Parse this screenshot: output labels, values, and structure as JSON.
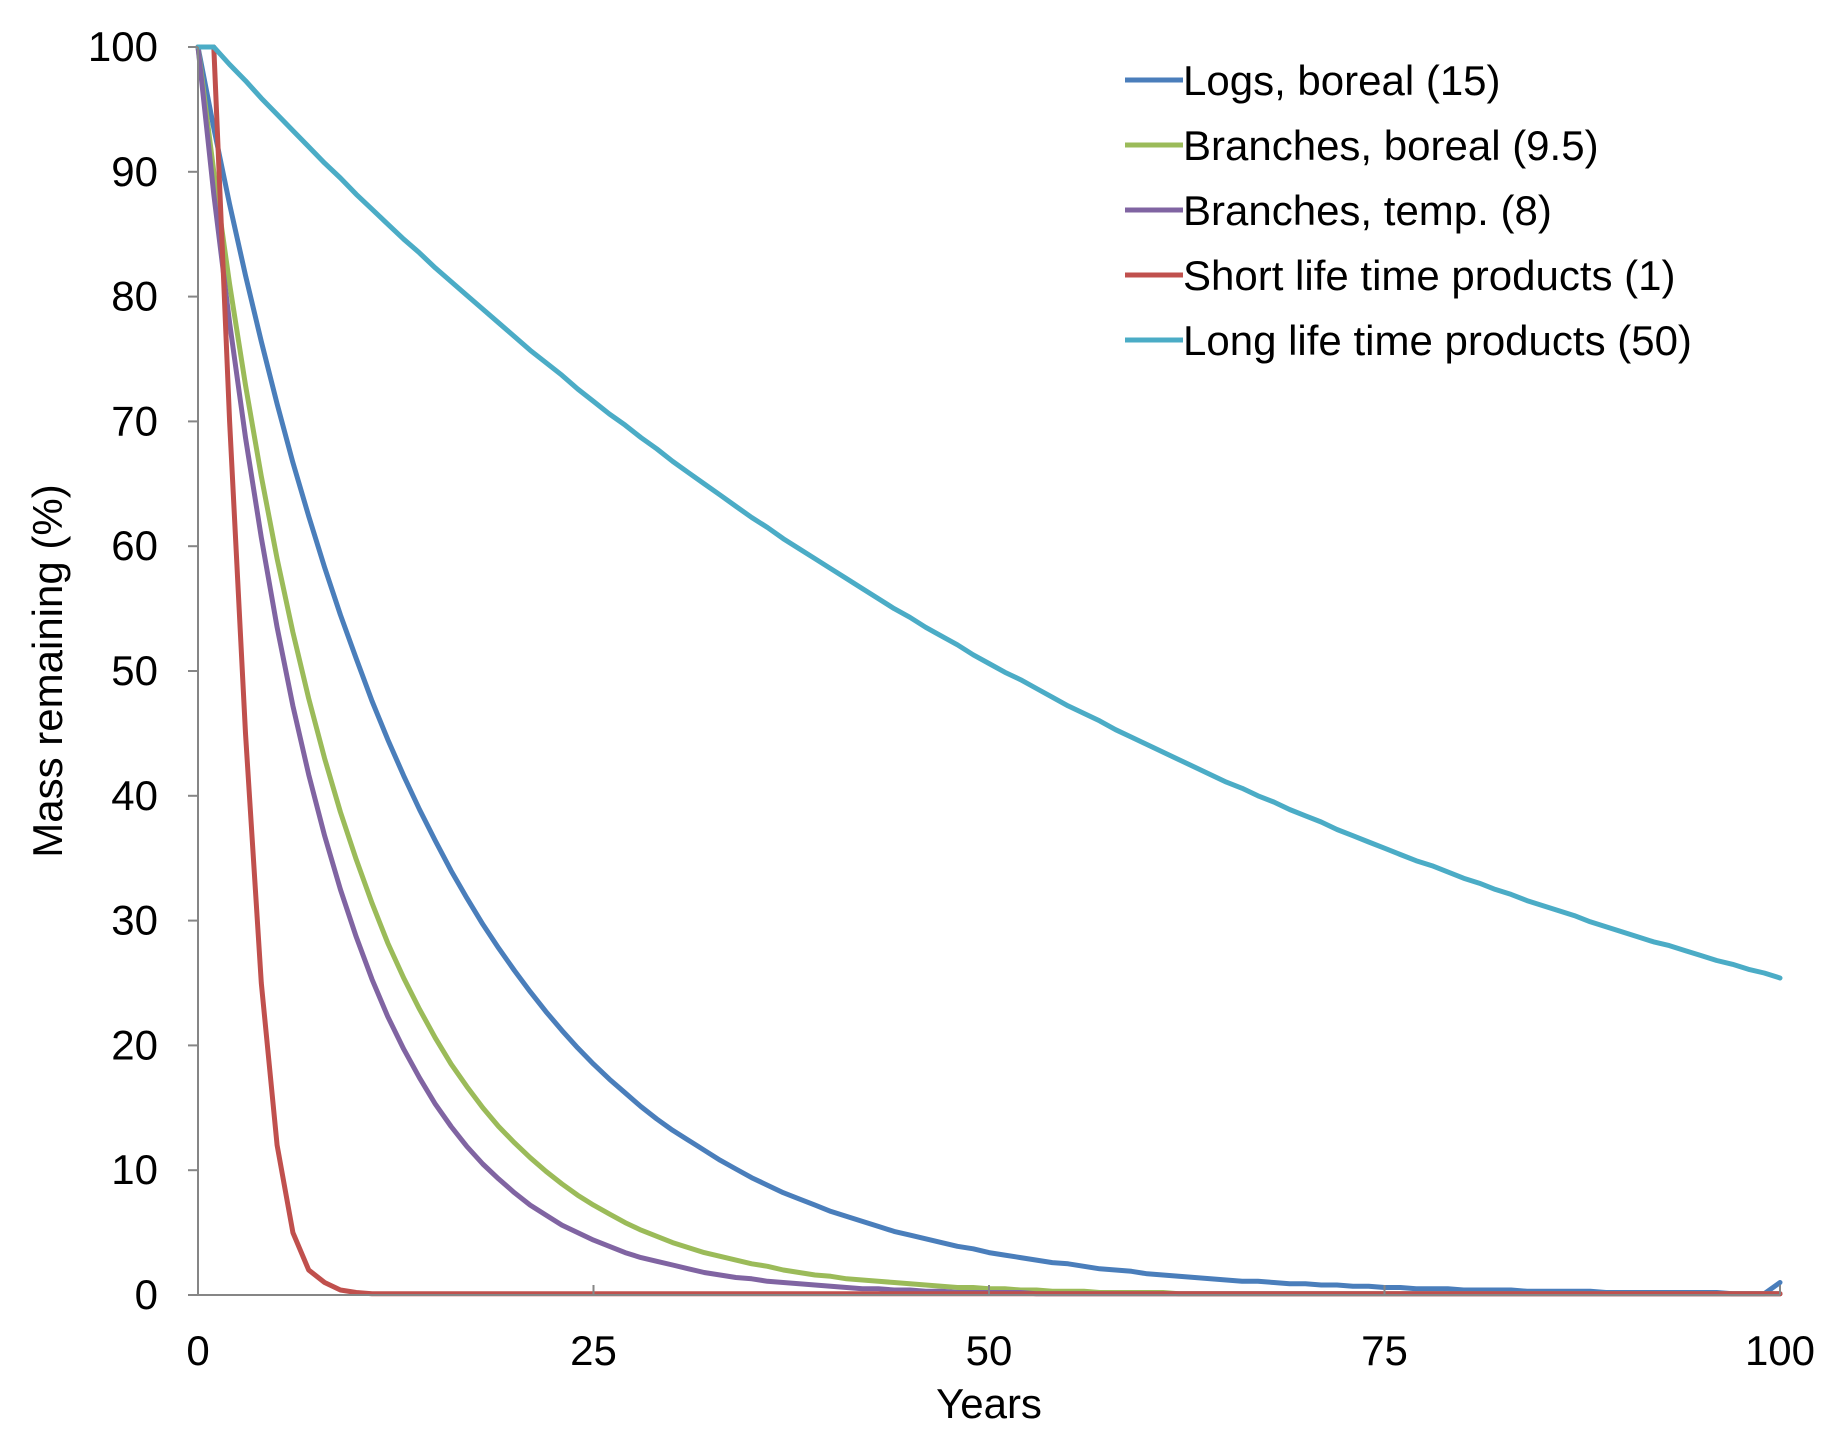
{
  "chart_data": {
    "type": "line",
    "title": "",
    "xlabel": "Years",
    "ylabel": "Mass remaining (%)",
    "xlim": [
      0,
      100
    ],
    "ylim": [
      0,
      100
    ],
    "xticks": [
      0,
      25,
      50,
      75,
      100
    ],
    "yticks": [
      0,
      10,
      20,
      30,
      40,
      50,
      60,
      70,
      80,
      90,
      100
    ],
    "xtick_labels": [
      "0",
      "25",
      "50",
      "75",
      "100"
    ],
    "ytick_labels": [
      "0",
      "10",
      "20",
      "30",
      "40",
      "50",
      "60",
      "70",
      "80",
      "90",
      "100"
    ],
    "grid": false,
    "legend_position": "top-right",
    "x": [
      0,
      1,
      2,
      3,
      4,
      5,
      6,
      7,
      8,
      9,
      10,
      11,
      12,
      13,
      14,
      15,
      16,
      17,
      18,
      19,
      20,
      21,
      22,
      23,
      24,
      25,
      26,
      27,
      28,
      29,
      30,
      31,
      32,
      33,
      34,
      35,
      36,
      37,
      38,
      39,
      40,
      41,
      42,
      43,
      44,
      45,
      46,
      47,
      48,
      49,
      50,
      51,
      52,
      53,
      54,
      55,
      56,
      57,
      58,
      59,
      60,
      61,
      62,
      63,
      64,
      65,
      66,
      67,
      68,
      69,
      70,
      71,
      72,
      73,
      74,
      75,
      76,
      77,
      78,
      79,
      80,
      81,
      82,
      83,
      84,
      85,
      86,
      87,
      88,
      89,
      90,
      91,
      92,
      93,
      94,
      95,
      96,
      97,
      98,
      99,
      100
    ],
    "series": [
      {
        "name": "Logs, boreal (15)",
        "color": "#4a7ebb",
        "values": [
          100,
          93.5,
          87.4,
          81.7,
          76.4,
          71.4,
          66.7,
          62.4,
          58.3,
          54.5,
          51.0,
          47.6,
          44.5,
          41.6,
          38.9,
          36.4,
          34.0,
          31.8,
          29.7,
          27.8,
          26.0,
          24.3,
          22.7,
          21.2,
          19.8,
          18.5,
          17.3,
          16.2,
          15.1,
          14.1,
          13.2,
          12.4,
          11.6,
          10.8,
          10.1,
          9.4,
          8.8,
          8.2,
          7.7,
          7.2,
          6.7,
          6.3,
          5.9,
          5.5,
          5.1,
          4.8,
          4.5,
          4.2,
          3.9,
          3.7,
          3.4,
          3.2,
          3.0,
          2.8,
          2.6,
          2.5,
          2.3,
          2.1,
          2.0,
          1.9,
          1.7,
          1.6,
          1.5,
          1.4,
          1.3,
          1.2,
          1.1,
          1.1,
          1.0,
          0.9,
          0.9,
          0.8,
          0.8,
          0.7,
          0.7,
          0.6,
          0.6,
          0.5,
          0.5,
          0.5,
          0.4,
          0.4,
          0.4,
          0.4,
          0.3,
          0.3,
          0.3,
          0.3,
          0.3,
          0.2,
          0.2,
          0.2,
          0.2,
          0.2,
          0.2,
          0.2,
          0.2,
          0.1,
          0.1,
          0.1,
          1.0
        ]
      },
      {
        "name": "Branches, boreal (9.5)",
        "color": "#9bbb59",
        "values": [
          100,
          90.0,
          81.0,
          72.9,
          65.6,
          59.0,
          53.1,
          47.8,
          43.0,
          38.7,
          34.9,
          31.4,
          28.2,
          25.4,
          22.9,
          20.6,
          18.5,
          16.7,
          15.0,
          13.5,
          12.2,
          11.0,
          9.9,
          8.9,
          8.0,
          7.2,
          6.5,
          5.8,
          5.2,
          4.7,
          4.2,
          3.8,
          3.4,
          3.1,
          2.8,
          2.5,
          2.3,
          2.0,
          1.8,
          1.6,
          1.5,
          1.3,
          1.2,
          1.1,
          1.0,
          0.9,
          0.8,
          0.7,
          0.6,
          0.6,
          0.5,
          0.5,
          0.4,
          0.4,
          0.3,
          0.3,
          0.3,
          0.2,
          0.2,
          0.2,
          0.2,
          0.2,
          0.1,
          0.1,
          0.1,
          0.1,
          0.1,
          0.1,
          0.1,
          0.1,
          0.1,
          0.1,
          0.1,
          0.1,
          0.1,
          0.1,
          0.1,
          0.1,
          0.1,
          0.1,
          0.1,
          0.1,
          0.1,
          0.1,
          0.1,
          0.1,
          0.1,
          0.1,
          0.1,
          0.1,
          0.1,
          0.1,
          0.1,
          0.1,
          0.1,
          0.1,
          0.1,
          0.1,
          0.1,
          0.1,
          0.1
        ]
      },
      {
        "name": "Branches, temp. (8)",
        "color": "#8064a2",
        "values": [
          100,
          88.2,
          77.9,
          68.7,
          60.7,
          53.5,
          47.2,
          41.7,
          36.8,
          32.5,
          28.7,
          25.3,
          22.3,
          19.7,
          17.4,
          15.3,
          13.5,
          11.9,
          10.5,
          9.3,
          8.2,
          7.2,
          6.4,
          5.6,
          5.0,
          4.4,
          3.9,
          3.4,
          3.0,
          2.7,
          2.4,
          2.1,
          1.8,
          1.6,
          1.4,
          1.3,
          1.1,
          1.0,
          0.9,
          0.8,
          0.7,
          0.6,
          0.5,
          0.5,
          0.4,
          0.4,
          0.3,
          0.3,
          0.2,
          0.2,
          0.2,
          0.2,
          0.2,
          0.1,
          0.1,
          0.1,
          0.1,
          0.1,
          0.1,
          0.1,
          0.1,
          0.1,
          0.1,
          0.1,
          0.1,
          0.1,
          0.1,
          0.1,
          0.1,
          0.1,
          0.1,
          0.1,
          0.1,
          0.1,
          0.1,
          0.1,
          0.1,
          0.1,
          0.1,
          0.1,
          0.1,
          0.1,
          0.1,
          0.1,
          0.1,
          0.1,
          0.1,
          0.1,
          0.1,
          0.1,
          0.1,
          0.1,
          0.1,
          0.1,
          0.1,
          0.1,
          0.1,
          0.1,
          0.1,
          0.1,
          0.1
        ]
      },
      {
        "name": "Short life time products (1)",
        "color": "#c0504d",
        "values": [
          100,
          100,
          70.0,
          45.0,
          25.0,
          12.0,
          5.0,
          2.0,
          1.0,
          0.4,
          0.2,
          0.1,
          0.1,
          0.1,
          0.1,
          0.1,
          0.1,
          0.1,
          0.1,
          0.1,
          0.1,
          0.1,
          0.1,
          0.1,
          0.1,
          0.1,
          0.1,
          0.1,
          0.1,
          0.1,
          0.1,
          0.1,
          0.1,
          0.1,
          0.1,
          0.1,
          0.1,
          0.1,
          0.1,
          0.1,
          0.1,
          0.1,
          0.1,
          0.1,
          0.1,
          0.1,
          0.1,
          0.1,
          0.1,
          0.1,
          0.1,
          0.1,
          0.1,
          0.1,
          0.1,
          0.1,
          0.1,
          0.1,
          0.1,
          0.1,
          0.1,
          0.1,
          0.1,
          0.1,
          0.1,
          0.1,
          0.1,
          0.1,
          0.1,
          0.1,
          0.1,
          0.1,
          0.1,
          0.1,
          0.1,
          0.1,
          0.1,
          0.1,
          0.1,
          0.1,
          0.1,
          0.1,
          0.1,
          0.1,
          0.1,
          0.1,
          0.1,
          0.1,
          0.1,
          0.1,
          0.1,
          0.1,
          0.1,
          0.1,
          0.1,
          0.1,
          0.1,
          0.1,
          0.1,
          0.1,
          0.1
        ]
      },
      {
        "name": "Long life time products (50)",
        "color": "#4bacc6",
        "values": [
          100,
          100,
          98.6,
          97.3,
          95.9,
          94.6,
          93.3,
          92.0,
          90.7,
          89.5,
          88.2,
          87.0,
          85.8,
          84.6,
          83.5,
          82.3,
          81.2,
          80.1,
          79.0,
          77.9,
          76.8,
          75.7,
          74.7,
          73.7,
          72.6,
          71.6,
          70.6,
          69.7,
          68.7,
          67.8,
          66.8,
          65.9,
          65.0,
          64.1,
          63.2,
          62.3,
          61.5,
          60.6,
          59.8,
          59.0,
          58.2,
          57.4,
          56.6,
          55.8,
          55.0,
          54.3,
          53.5,
          52.8,
          52.1,
          51.3,
          50.6,
          49.9,
          49.3,
          48.6,
          47.9,
          47.2,
          46.6,
          46.0,
          45.3,
          44.7,
          44.1,
          43.5,
          42.9,
          42.3,
          41.7,
          41.1,
          40.6,
          40.0,
          39.5,
          38.9,
          38.4,
          37.9,
          37.3,
          36.8,
          36.3,
          35.8,
          35.3,
          34.8,
          34.4,
          33.9,
          33.4,
          33.0,
          32.5,
          32.1,
          31.6,
          31.2,
          30.8,
          30.4,
          29.9,
          29.5,
          29.1,
          28.7,
          28.3,
          28.0,
          27.6,
          27.2,
          26.8,
          26.5,
          26.1,
          25.8,
          25.4
        ]
      }
    ]
  }
}
